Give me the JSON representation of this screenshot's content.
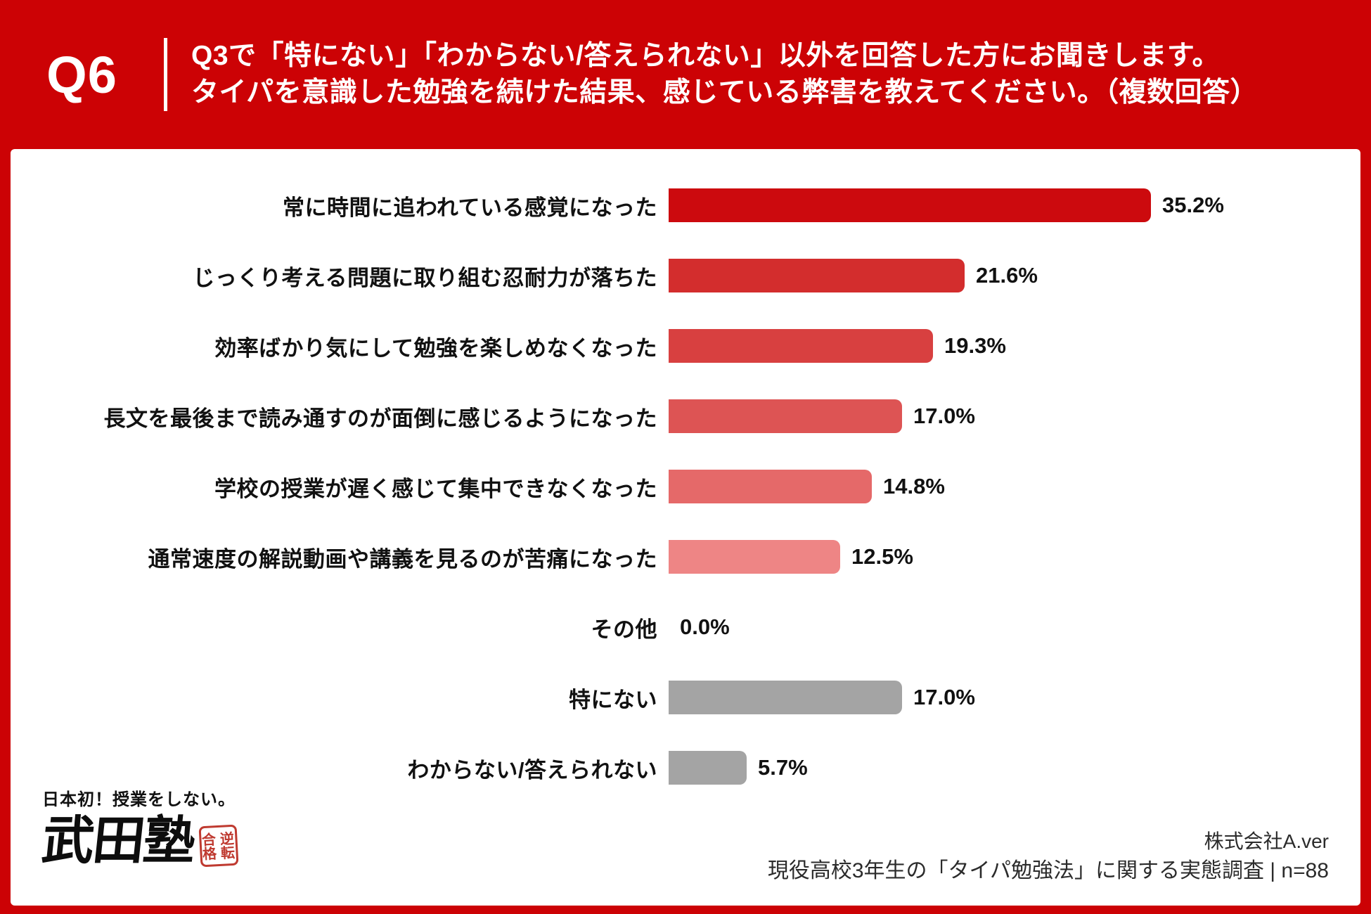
{
  "header": {
    "question_number": "Q6",
    "title_line1": "Q3で「特にない」「わからない/答えられない」以外を回答した方にお聞きします。",
    "title_line2": "タイパを意識した勉強を続けた結果、感じている弊害を教えてください。（複数回答）"
  },
  "chart_data": {
    "type": "bar",
    "orientation": "horizontal",
    "unit": "%",
    "categories": [
      "常に時間に追われている感覚になった",
      "じっくり考える問題に取り組む忍耐力が落ちた",
      "効率ばかり気にして勉強を楽しめなくなった",
      "長文を最後まで読み通すのが面倒に感じるようになった",
      "学校の授業が遅く感じて集中できなくなった",
      "通常速度の解説動画や講義を見るのが苦痛になった",
      "その他",
      "特にない",
      "わからない/答えられない"
    ],
    "values": [
      35.2,
      21.6,
      19.3,
      17.0,
      14.8,
      12.5,
      0.0,
      17.0,
      5.7
    ],
    "value_labels": [
      "35.2%",
      "21.6%",
      "19.3%",
      "17.0%",
      "14.8%",
      "12.5%",
      "0.0%",
      "17.0%",
      "5.7%"
    ],
    "bar_colors": [
      "#CC0A0E",
      "#D32D2D",
      "#D84040",
      "#DD5454",
      "#E56969",
      "#EE8585",
      "#EE8585",
      "#A4A4A4",
      "#A4A4A4"
    ],
    "xlim": [
      0,
      40
    ],
    "grid": false,
    "legend": false
  },
  "logo": {
    "tagline": "日本初！授業をしない。",
    "brand": "武田塾",
    "seal_text": "逆転合格"
  },
  "footer": {
    "company": "株式会社A.ver",
    "survey": "現役高校3年生の「タイパ勉強法」に関する実態調査 | n=88"
  },
  "colors": {
    "brand_red": "#CC0205",
    "panel_white": "#FFFFFF",
    "gray_bar": "#A4A4A4",
    "text_black": "#111111"
  }
}
